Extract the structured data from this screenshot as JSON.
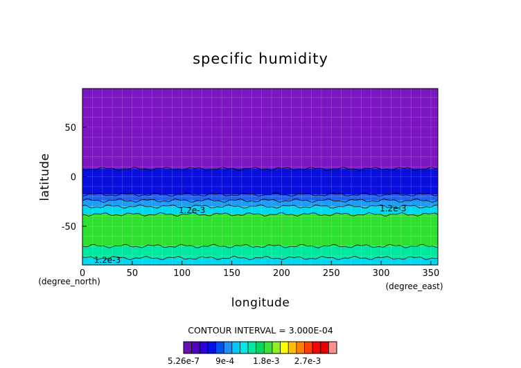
{
  "chart_data": {
    "type": "heatmap",
    "title": "specific humidity",
    "xlabel": "longitude",
    "ylabel": "latitude",
    "x_unit_label": "(degree_east)",
    "y_unit_label": "(degree_north)",
    "xlim": [
      0,
      357
    ],
    "ylim": [
      -89,
      89
    ],
    "x_ticks": [
      0,
      50,
      100,
      150,
      200,
      250,
      300,
      350
    ],
    "y_ticks": [
      -50,
      0,
      50
    ],
    "grid": true,
    "contour_interval_label": "CONTOUR INTERVAL = 3.000E-04",
    "contour_labels": [
      {
        "text": "1.2e-3",
        "x": 110,
        "lat": -34
      },
      {
        "text": "1.2e-3",
        "x": 312,
        "lat": -32
      },
      {
        "text": "1.2e-3",
        "x": 25,
        "lat": -84
      }
    ],
    "colorbar": {
      "tick_labels": [
        "5.26e-7",
        "9e-4",
        "1.8e-3",
        "2.7e-3"
      ],
      "colors": [
        "#6a0fb0",
        "#5000c0",
        "#2a00d8",
        "#0010e8",
        "#0050f0",
        "#2090f8",
        "#00c8ff",
        "#00e8e8",
        "#00e8a0",
        "#00d860",
        "#40e040",
        "#90f020",
        "#ffff00",
        "#ffc000",
        "#ff8000",
        "#ff4000",
        "#ff0000",
        "#e80000",
        "#ff9090"
      ]
    },
    "latitude_bands": [
      {
        "lat_from": 89,
        "lat_to": 8,
        "value": 5e-07,
        "color": "#7b16c0"
      },
      {
        "lat_from": 8,
        "lat_to": -18,
        "value": 0.00045,
        "color": "#0a10dc"
      },
      {
        "lat_from": -18,
        "lat_to": -24,
        "value": 0.0006,
        "color": "#2060f0"
      },
      {
        "lat_from": -24,
        "lat_to": -30,
        "value": 0.0009,
        "color": "#1f9cf7"
      },
      {
        "lat_from": -30,
        "lat_to": -38,
        "value": 0.0012,
        "color": "#00d8f0"
      },
      {
        "lat_from": -38,
        "lat_to": -70,
        "value": 0.0018,
        "color": "#30e030"
      },
      {
        "lat_from": -70,
        "lat_to": -82,
        "value": 0.0015,
        "color": "#00e8a0"
      },
      {
        "lat_from": -82,
        "lat_to": -89,
        "value": 0.0012,
        "color": "#00d8f0"
      }
    ]
  }
}
